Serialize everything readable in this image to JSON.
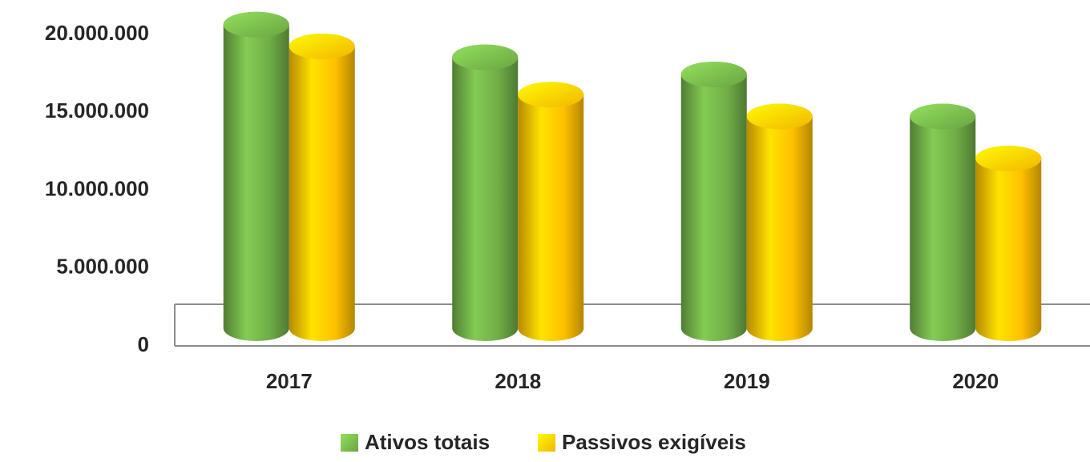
{
  "chart_data": {
    "type": "bar",
    "categories": [
      "2017",
      "2018",
      "2019",
      "2020"
    ],
    "series": [
      {
        "name": "Ativos totais",
        "color": "#70ad47",
        "values": [
          19500000,
          17400000,
          16300000,
          13600000
        ]
      },
      {
        "name": "Passivos exigíveis",
        "color": "#ffc000",
        "values": [
          18100000,
          15000000,
          13600000,
          10900000
        ]
      }
    ],
    "ylim": [
      0,
      20000000
    ],
    "yticks": [
      0,
      {
        "value": 5000000,
        "label": "5.000.000"
      },
      {
        "value": 10000000,
        "label": "10.000.000"
      },
      {
        "value": 15000000,
        "label": "15.000.000"
      },
      {
        "value": 20000000,
        "label": "20.000.000"
      }
    ],
    "legend": "bottom"
  }
}
